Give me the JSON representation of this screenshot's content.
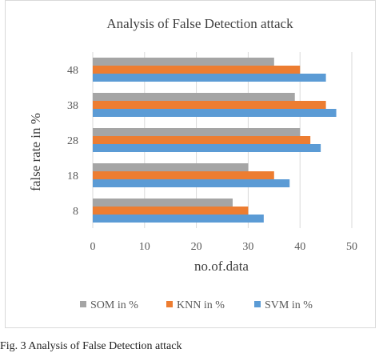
{
  "caption": "Fig. 3    Analysis of False Detection attack",
  "chart_data": {
    "type": "bar",
    "orientation": "horizontal",
    "title": "Analysis  of False Detection attack",
    "xlabel": "no.of.data",
    "ylabel": "false rate in %",
    "categories": [
      "8",
      "18",
      "28",
      "38",
      "48"
    ],
    "xlim": [
      0,
      50
    ],
    "xticks": [
      "0",
      "10",
      "20",
      "30",
      "40",
      "50"
    ],
    "grid": true,
    "legend_position": "bottom",
    "series": [
      {
        "name": "SOM in %",
        "color": "#a5a5a5",
        "values": [
          27,
          30,
          40,
          39,
          35
        ]
      },
      {
        "name": "KNN in %",
        "color": "#ed7d31",
        "values": [
          30,
          35,
          42,
          45,
          40
        ]
      },
      {
        "name": "SVM in %",
        "color": "#5b9bd5",
        "values": [
          33,
          38,
          44,
          47,
          45
        ]
      }
    ]
  }
}
